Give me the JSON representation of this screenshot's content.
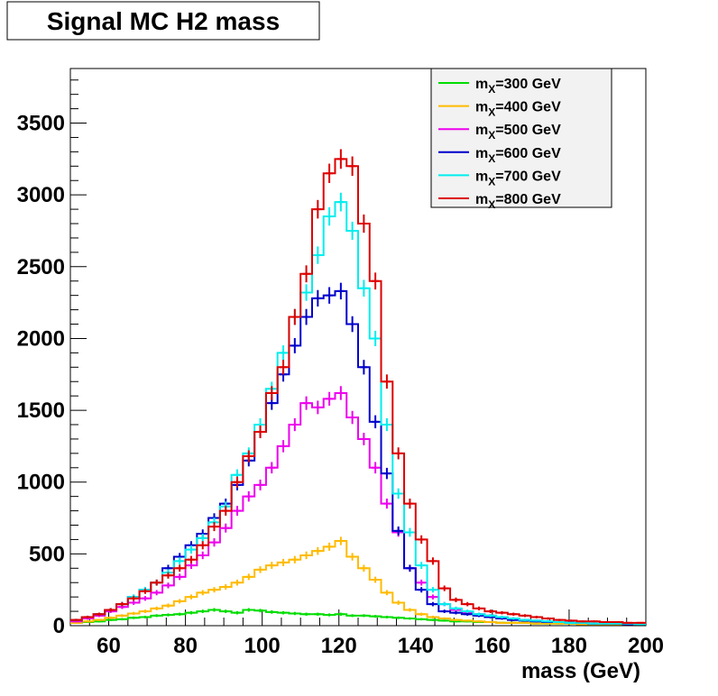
{
  "chart_data": {
    "type": "line",
    "style": "step-histogram-with-error-bars",
    "title": "Signal MC H2 mass",
    "xlabel": "mass (GeV)",
    "ylabel": "",
    "xlim": [
      50,
      200
    ],
    "ylim": [
      0,
      3880
    ],
    "bin_width": 3,
    "x_ticks": [
      60,
      80,
      100,
      120,
      140,
      160,
      180,
      200
    ],
    "y_ticks": [
      0,
      500,
      1000,
      1500,
      2000,
      2500,
      3000,
      3500
    ],
    "legend_position": "top-right",
    "grid": false,
    "x": [
      51.5,
      54.5,
      57.5,
      60.5,
      63.5,
      66.5,
      69.5,
      72.5,
      75.5,
      78.5,
      81.5,
      84.5,
      87.5,
      90.5,
      93.5,
      96.5,
      99.5,
      102.5,
      105.5,
      108.5,
      111.5,
      114.5,
      117.5,
      120.5,
      123.5,
      126.5,
      129.5,
      132.5,
      135.5,
      138.5,
      141.5,
      144.5,
      147.5,
      150.5,
      153.5,
      156.5,
      159.5,
      162.5,
      165.5,
      168.5,
      171.5,
      174.5,
      177.5,
      180.5,
      183.5,
      186.5,
      189.5,
      192.5,
      195.5,
      198.5
    ],
    "series": [
      {
        "name": "m_X=300 GeV",
        "label_main": "m",
        "label_sub": "X",
        "label_rest": "=300 GeV",
        "color": "#00dd00",
        "values": [
          20,
          25,
          30,
          40,
          45,
          55,
          60,
          70,
          75,
          80,
          90,
          100,
          110,
          100,
          90,
          110,
          105,
          95,
          90,
          85,
          80,
          80,
          75,
          80,
          70,
          70,
          65,
          60,
          55,
          50,
          45,
          40,
          35,
          30,
          30,
          25,
          25,
          20,
          20,
          20,
          15,
          15,
          15,
          15,
          10,
          10,
          10,
          10,
          10,
          10
        ]
      },
      {
        "name": "m_X=400 GeV",
        "label_main": "m",
        "label_sub": "X",
        "label_rest": "=400 GeV",
        "color": "#ffbb00",
        "values": [
          20,
          30,
          40,
          55,
          70,
          85,
          100,
          120,
          140,
          170,
          200,
          230,
          250,
          270,
          300,
          340,
          390,
          420,
          440,
          460,
          490,
          520,
          550,
          590,
          480,
          400,
          320,
          230,
          160,
          110,
          80,
          60,
          50,
          40,
          35,
          30,
          25,
          20,
          20,
          20,
          15,
          15,
          15,
          15,
          10,
          10,
          10,
          10,
          10,
          10
        ]
      },
      {
        "name": "m_X=500 GeV",
        "label_main": "m",
        "label_sub": "X",
        "label_rest": "=500 GeV",
        "color": "#ee00ee",
        "values": [
          30,
          50,
          70,
          100,
          130,
          160,
          190,
          230,
          280,
          340,
          420,
          490,
          580,
          680,
          800,
          900,
          980,
          1100,
          1250,
          1400,
          1550,
          1520,
          1580,
          1620,
          1450,
          1300,
          1100,
          850,
          650,
          400,
          300,
          200,
          150,
          110,
          90,
          80,
          70,
          60,
          50,
          40,
          35,
          30,
          25,
          20,
          20,
          15,
          15,
          15,
          15,
          10
        ]
      },
      {
        "name": "m_X=600 GeV",
        "label_main": "m",
        "label_sub": "X",
        "label_rest": "=600 GeV",
        "color": "#0000cc",
        "values": [
          40,
          60,
          80,
          110,
          150,
          200,
          250,
          300,
          400,
          480,
          560,
          640,
          750,
          850,
          980,
          1150,
          1350,
          1550,
          1750,
          1950,
          2150,
          2280,
          2300,
          2330,
          2100,
          1800,
          1420,
          1060,
          660,
          400,
          250,
          150,
          100,
          90,
          80,
          70,
          60,
          50,
          40,
          35,
          30,
          25,
          25,
          20,
          20,
          15,
          15,
          15,
          10,
          10
        ]
      },
      {
        "name": "m_X=700 GeV",
        "label_main": "m",
        "label_sub": "X",
        "label_rest": "=700 GeV",
        "color": "#00eeee",
        "values": [
          40,
          60,
          80,
          110,
          150,
          200,
          250,
          300,
          370,
          450,
          530,
          610,
          720,
          830,
          1050,
          1200,
          1400,
          1650,
          1900,
          2150,
          2320,
          2580,
          2850,
          2950,
          2750,
          2350,
          2000,
          1400,
          920,
          650,
          420,
          250,
          150,
          120,
          100,
          80,
          70,
          60,
          50,
          40,
          35,
          30,
          25,
          20,
          20,
          15,
          15,
          15,
          15,
          10
        ]
      },
      {
        "name": "m_X=800 GeV",
        "label_main": "m",
        "label_sub": "X",
        "label_rest": "=800 GeV",
        "color": "#dd0000",
        "values": [
          40,
          60,
          80,
          110,
          150,
          190,
          240,
          300,
          350,
          400,
          460,
          560,
          690,
          800,
          1000,
          1180,
          1350,
          1620,
          1800,
          2150,
          2450,
          2900,
          3150,
          3250,
          3200,
          2800,
          2400,
          1700,
          1200,
          850,
          600,
          450,
          260,
          180,
          150,
          120,
          100,
          90,
          80,
          70,
          60,
          50,
          40,
          35,
          30,
          30,
          25,
          25,
          20,
          20
        ]
      }
    ]
  }
}
